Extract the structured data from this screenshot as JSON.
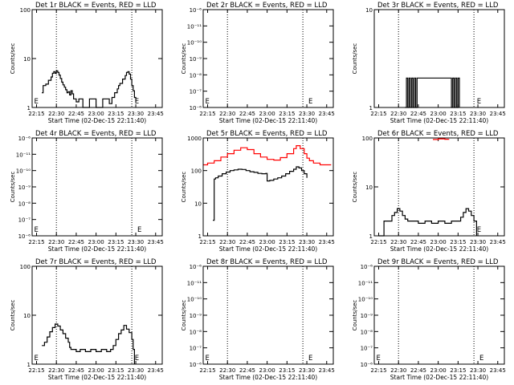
{
  "figure": {
    "xtick_labels": [
      "22:15",
      "22:30",
      "22:45",
      "23:00",
      "23:15",
      "23:30",
      "23:45"
    ],
    "xlabel": "Start Time (02-Dec-15 22:11:40)",
    "ylabel": "Counts/sec",
    "marker_label": "E",
    "colors": {
      "events": "#000000",
      "lld": "#ff0000"
    }
  },
  "chart_data": [
    {
      "type": "line",
      "title": "Det 1r BLACK = Events, RED = LLD",
      "yscale": "log",
      "ylim": [
        1,
        100
      ],
      "ytick_labels": [
        "1",
        "10",
        "100"
      ],
      "xlim": [
        "22:11:40",
        "23:50:00"
      ],
      "vlines": [
        "22:30",
        "23:27",
        "23:50"
      ],
      "series": [
        {
          "color": "#000000",
          "x": [
            "22:19",
            "22:20",
            "22:22",
            "22:24",
            "22:26",
            "22:27",
            "22:28",
            "22:29",
            "22:30",
            "22:31",
            "22:32",
            "22:33",
            "22:34",
            "22:35",
            "22:36",
            "22:37",
            "22:38",
            "22:39",
            "22:40",
            "22:41",
            "22:42",
            "22:43",
            "22:45",
            "22:47",
            "22:50",
            "22:55",
            "23:00",
            "23:05",
            "23:10",
            "23:12",
            "23:14",
            "23:16",
            "23:17",
            "23:18",
            "23:20",
            "23:22",
            "23:23",
            "23:24",
            "23:25",
            "23:26",
            "23:27",
            "23:28",
            "23:29",
            "23:30"
          ],
          "y": [
            2.0,
            2.8,
            3.0,
            3.6,
            4.2,
            5.0,
            5.4,
            5.0,
            5.6,
            5.2,
            4.6,
            3.9,
            3.3,
            2.9,
            2.6,
            2.3,
            2.0,
            2.1,
            1.8,
            2.2,
            1.9,
            1.5,
            1.3,
            1.5,
            1.0,
            1.5,
            1.0,
            1.5,
            1.2,
            1.6,
            2.0,
            2.4,
            2.8,
            3.1,
            3.8,
            4.5,
            5.2,
            5.4,
            4.8,
            3.8,
            2.8,
            2.2,
            1.6,
            1.3
          ]
        }
      ],
      "markers": [
        "22:12",
        "23:28"
      ]
    },
    {
      "type": "line",
      "title": "Det 2r BLACK = Events, RED = LLD",
      "yscale": "log",
      "ylim": [
        1e-06,
        1e-11
      ],
      "ytick_labels": [
        "10⁻⁶",
        "10⁻⁷",
        "10⁻⁸",
        "10⁻⁹",
        "10⁻¹⁰",
        "10⁻¹¹",
        "10⁻⁶"
      ],
      "xlim": [
        "22:11:40",
        "23:50:00"
      ],
      "vlines": [
        "22:30",
        "23:27",
        "23:50"
      ],
      "series": [],
      "markers": [
        "22:12",
        "23:30"
      ]
    },
    {
      "type": "line",
      "title": "Det 3r BLACK = Events, RED = LLD",
      "yscale": "log",
      "ylim": [
        1,
        10
      ],
      "ytick_labels": [
        "1",
        "10"
      ],
      "xlim": [
        "22:11:40",
        "23:50:00"
      ],
      "vlines": [
        "22:30",
        "23:27",
        "23:50"
      ],
      "series": [
        {
          "color": "#000000",
          "x": [
            "22:35",
            "22:36",
            "22:37",
            "22:38",
            "22:39",
            "22:40",
            "22:41",
            "22:42",
            "22:43",
            "22:44",
            "23:10",
            "23:11",
            "23:12",
            "23:13",
            "23:14",
            "23:15",
            "23:16"
          ],
          "y": [
            1,
            2,
            1,
            2,
            1,
            2,
            1,
            2,
            1,
            2,
            1,
            2,
            1,
            2,
            1,
            2,
            1
          ]
        }
      ],
      "markers": [
        "23:28"
      ]
    },
    {
      "type": "line",
      "title": "Det 4r BLACK = Events, RED = LLD",
      "yscale": "log",
      "ylim": [
        1e-06,
        1e-11
      ],
      "ytick_labels": [
        "10⁻⁶",
        "10⁻⁷",
        "10⁻⁸",
        "10⁻⁹",
        "10⁻¹⁰",
        "10⁻¹¹",
        "10⁻⁶"
      ],
      "xlim": [
        "22:11:40",
        "23:50:00"
      ],
      "vlines": [
        "22:30",
        "23:27",
        "23:50"
      ],
      "series": [],
      "markers": [
        "22:12",
        "23:30"
      ]
    },
    {
      "type": "line",
      "title": "Det 5r BLACK = Events, RED = LLD",
      "yscale": "log",
      "ylim": [
        1,
        1000
      ],
      "ytick_labels": [
        "1",
        "10",
        "100",
        "1000"
      ],
      "xlim": [
        "22:11:40",
        "23:50:00"
      ],
      "vlines": [
        "22:30",
        "23:27",
        "23:50"
      ],
      "series": [
        {
          "color": "#000000",
          "x": [
            "22:19",
            "22:20",
            "22:21",
            "22:23",
            "22:26",
            "22:29",
            "22:32",
            "22:35",
            "22:38",
            "22:41",
            "22:44",
            "22:47",
            "22:50",
            "22:53",
            "22:56",
            "22:59",
            "23:00",
            "23:02",
            "23:05",
            "23:08",
            "23:11",
            "23:14",
            "23:17",
            "23:20",
            "23:22",
            "23:24",
            "23:26",
            "23:28",
            "23:30"
          ],
          "y": [
            3,
            55,
            60,
            68,
            80,
            90,
            100,
            105,
            110,
            108,
            100,
            92,
            88,
            82,
            80,
            82,
            48,
            50,
            55,
            60,
            68,
            80,
            95,
            110,
            130,
            120,
            100,
            80,
            60
          ]
        },
        {
          "color": "#ff0000",
          "x": [
            "22:12",
            "22:15",
            "22:20",
            "22:25",
            "22:30",
            "22:35",
            "22:40",
            "22:45",
            "22:50",
            "22:55",
            "23:00",
            "23:05",
            "23:10",
            "23:15",
            "23:20",
            "23:22",
            "23:25",
            "23:28",
            "23:30",
            "23:32",
            "23:35",
            "23:40",
            "23:45",
            "23:48"
          ],
          "y": [
            150,
            170,
            200,
            260,
            330,
            420,
            500,
            440,
            330,
            260,
            220,
            210,
            250,
            330,
            470,
            580,
            470,
            330,
            240,
            200,
            170,
            150,
            150,
            145
          ]
        }
      ],
      "markers": []
    },
    {
      "type": "line",
      "title": "Det 6r BLACK = Events, RED = LLD",
      "yscale": "log",
      "ylim": [
        1,
        100
      ],
      "ytick_labels": [
        "1",
        "10",
        "100"
      ],
      "xlim": [
        "22:11:40",
        "23:50:00"
      ],
      "vlines": [
        "22:30",
        "23:27",
        "23:50"
      ],
      "series": [
        {
          "color": "#000000",
          "x": [
            "22:15",
            "22:19",
            "22:23",
            "22:25",
            "22:27",
            "22:29",
            "22:31",
            "22:33",
            "22:35",
            "22:37",
            "22:40",
            "22:45",
            "22:50",
            "22:55",
            "23:00",
            "23:05",
            "23:10",
            "23:14",
            "23:17",
            "23:19",
            "23:21",
            "23:23",
            "23:25",
            "23:27",
            "23:29"
          ],
          "y": [
            1.0,
            2.0,
            2.0,
            2.6,
            3.0,
            3.6,
            3.2,
            2.6,
            2.2,
            2.0,
            2.0,
            1.8,
            2.0,
            1.8,
            2.0,
            1.8,
            2.0,
            2.0,
            2.4,
            3.0,
            3.6,
            3.2,
            2.6,
            2.0,
            1.0
          ]
        },
        {
          "color": "#ff0000",
          "x": [
            "22:56",
            "23:00",
            "23:05",
            "23:08"
          ],
          "y": [
            93,
            96,
            94,
            95
          ]
        }
      ],
      "markers": [
        "23:28"
      ]
    },
    {
      "type": "line",
      "title": "Det 7r BLACK = Events, RED = LLD",
      "yscale": "log",
      "ylim": [
        1,
        100
      ],
      "ytick_labels": [
        "1",
        "10",
        "100"
      ],
      "xlim": [
        "22:11:40",
        "23:50:00"
      ],
      "vlines": [
        "22:30",
        "23:27",
        "23:50"
      ],
      "series": [
        {
          "color": "#000000",
          "x": [
            "22:19",
            "22:21",
            "22:23",
            "22:25",
            "22:27",
            "22:29",
            "22:31",
            "22:33",
            "22:35",
            "22:37",
            "22:39",
            "22:40",
            "22:41",
            "22:43",
            "22:45",
            "22:48",
            "22:52",
            "22:56",
            "23:00",
            "23:04",
            "23:08",
            "23:11",
            "23:13",
            "23:15",
            "23:17",
            "23:19",
            "23:21",
            "23:23",
            "23:25",
            "23:27",
            "23:28",
            "23:29"
          ],
          "y": [
            2.4,
            2.8,
            3.6,
            4.6,
            5.6,
            6.6,
            6.0,
            5.0,
            4.2,
            3.4,
            2.8,
            2.2,
            2.0,
            2.0,
            1.8,
            2.0,
            1.8,
            2.0,
            1.8,
            2.0,
            1.8,
            2.0,
            2.4,
            3.2,
            4.2,
            5.0,
            6.2,
            5.2,
            4.4,
            3.2,
            2.0,
            1.0
          ]
        }
      ],
      "markers": [
        "22:12",
        "23:28"
      ]
    },
    {
      "type": "line",
      "title": "Det 8r BLACK = Events, RED = LLD",
      "yscale": "log",
      "ylim": [
        1e-06,
        1e-11
      ],
      "ytick_labels": [
        "10⁻⁶",
        "10⁻⁷",
        "10⁻⁸",
        "10⁻⁹",
        "10⁻¹⁰",
        "10⁻¹¹",
        "10⁻⁶"
      ],
      "xlim": [
        "22:11:40",
        "23:50:00"
      ],
      "vlines": [
        "22:30",
        "23:27",
        "23:50"
      ],
      "series": [],
      "markers": [
        "22:12",
        "23:30"
      ]
    },
    {
      "type": "line",
      "title": "Det 9r BLACK = Events, RED = LLD",
      "yscale": "log",
      "ylim": [
        1e-06,
        1e-11
      ],
      "ytick_labels": [
        "10⁻⁶",
        "10⁻⁷",
        "10⁻⁸",
        "10⁻⁹",
        "10⁻¹⁰",
        "10⁻¹¹",
        "10⁻⁶"
      ],
      "xlim": [
        "22:11:40",
        "23:50:00"
      ],
      "vlines": [
        "22:30",
        "23:27",
        "23:50"
      ],
      "series": [],
      "markers": [
        "22:12",
        "23:30"
      ]
    }
  ]
}
